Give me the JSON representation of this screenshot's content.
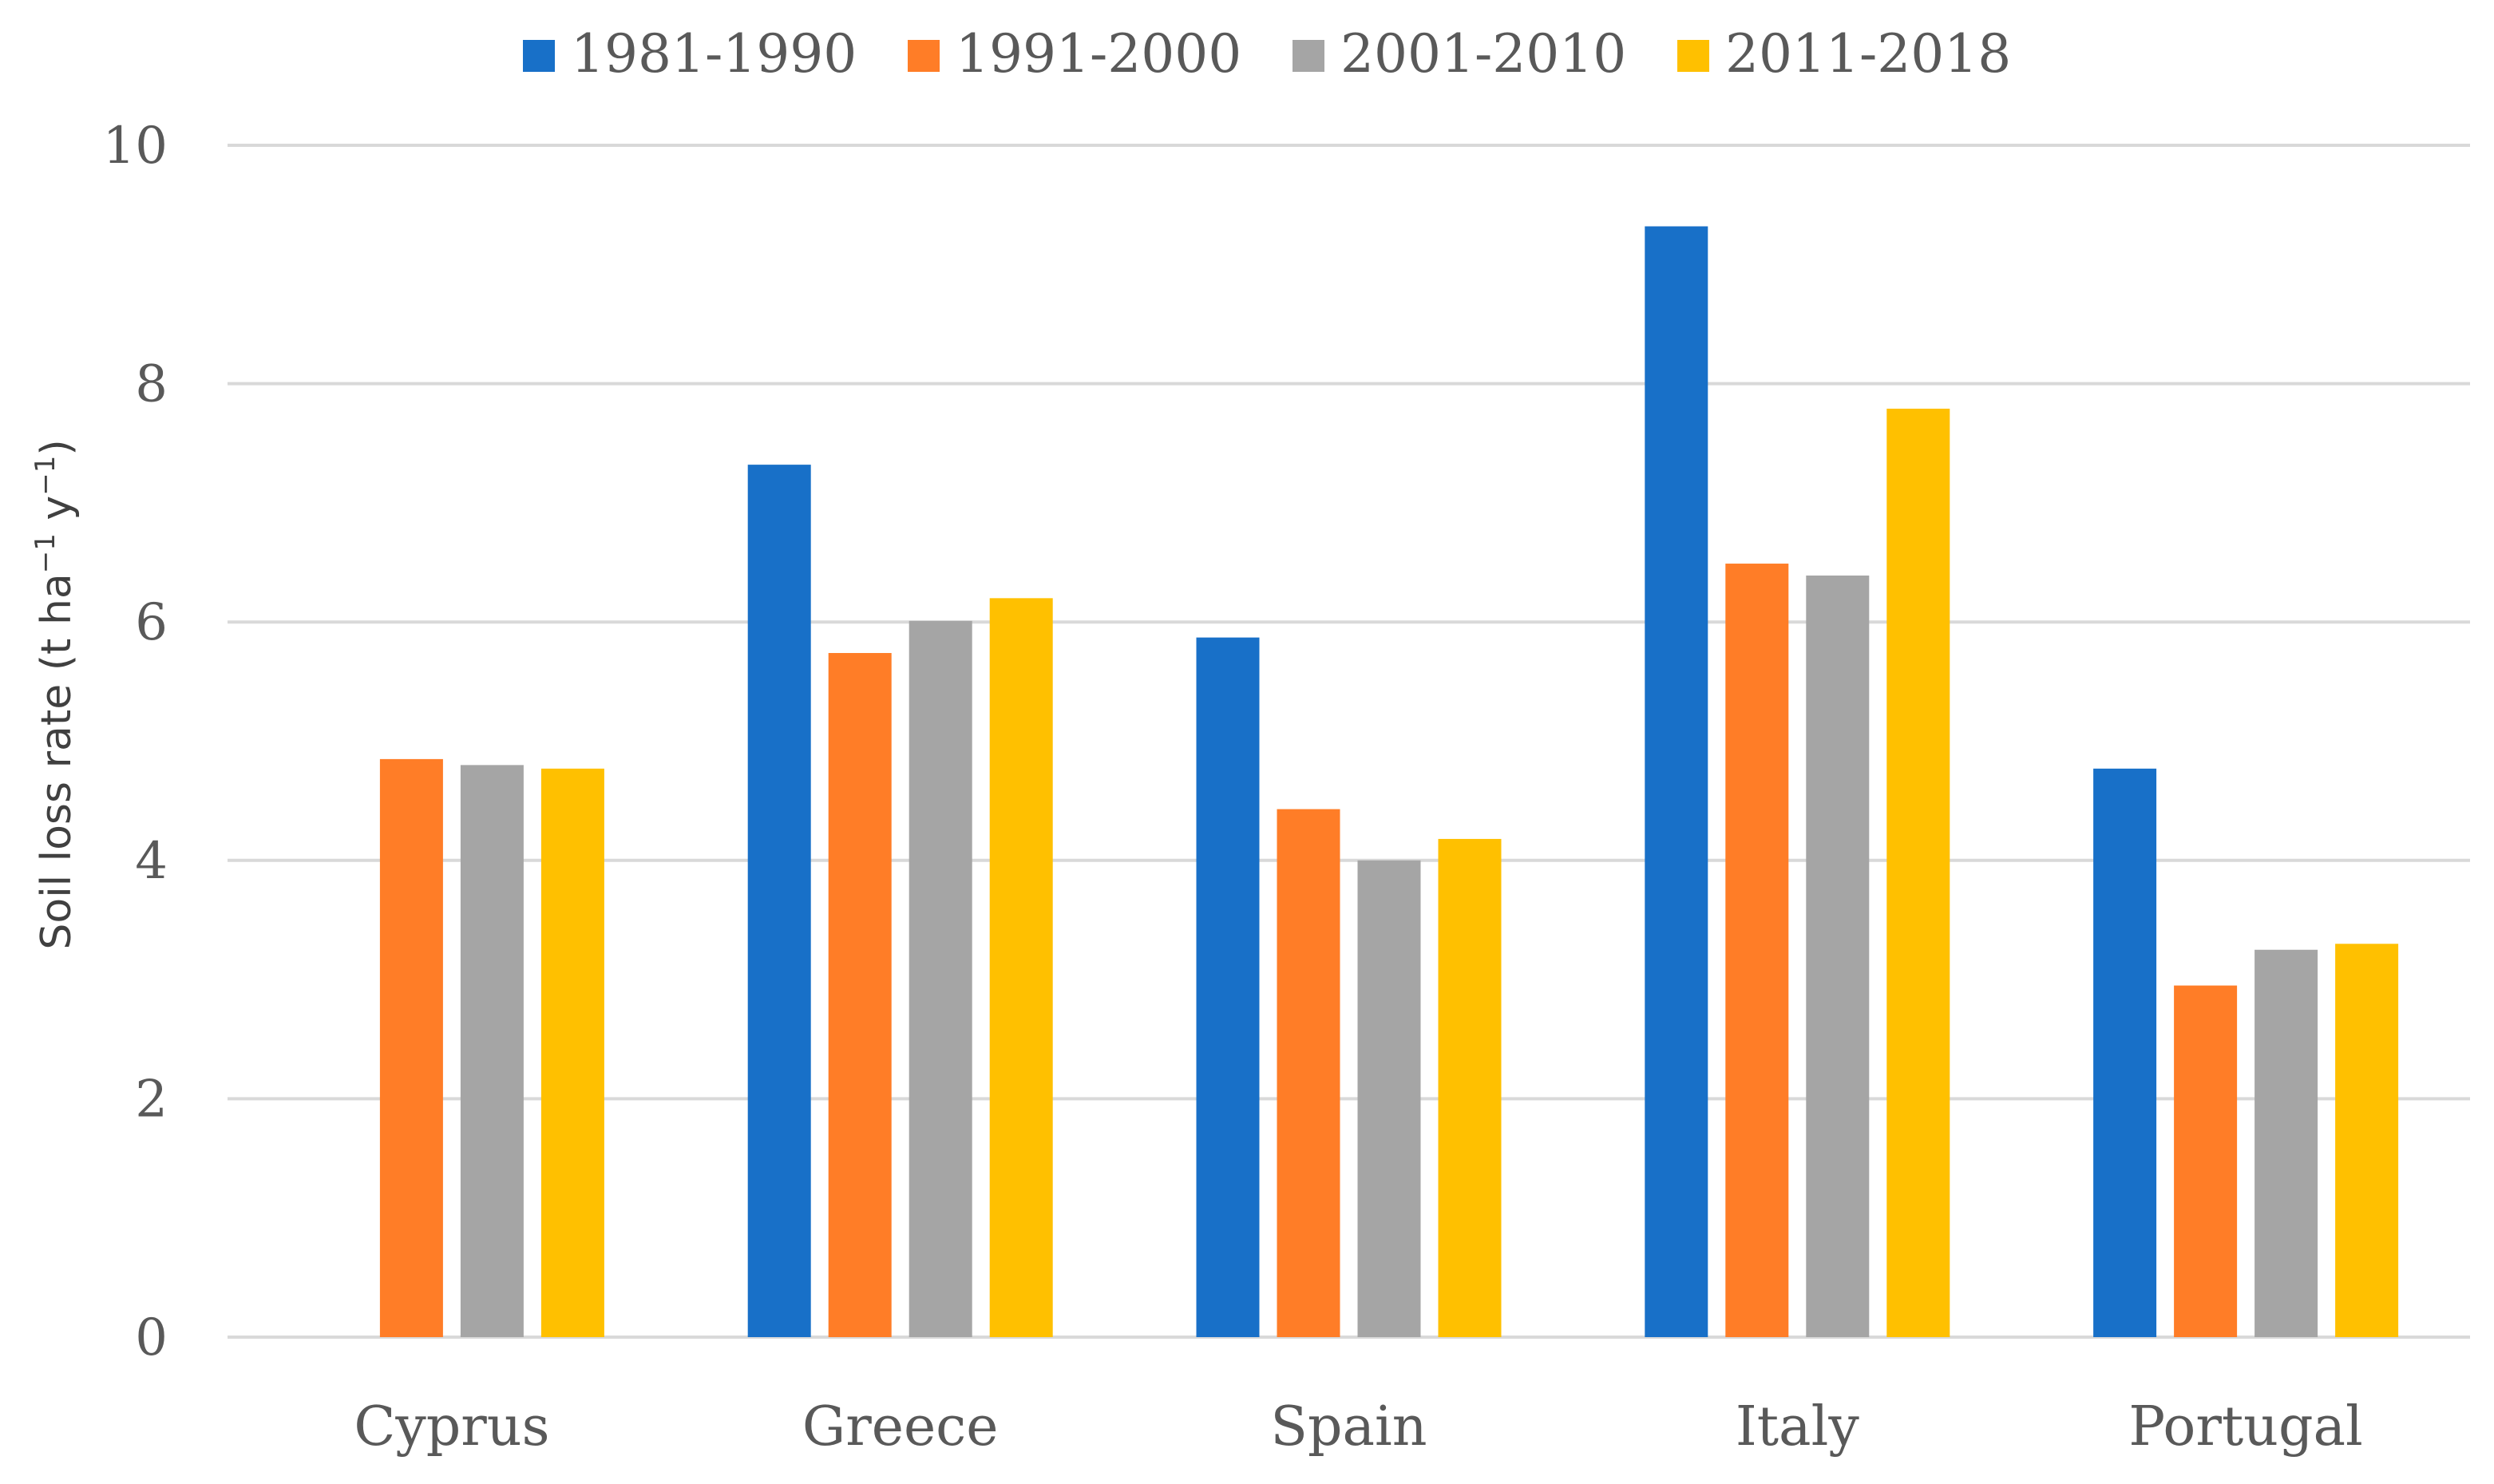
{
  "chart_data": {
    "type": "bar",
    "title": "",
    "xlabel": "",
    "ylabel": "Soil loss rate (t ha",
    "ylabel_sup1": "−1",
    "ylabel_mid": " y",
    "ylabel_sup2": "−1",
    "ylabel_end": ")",
    "ylim": [
      0,
      10
    ],
    "yticks": [
      "0",
      "2",
      "4",
      "6",
      "8",
      "10"
    ],
    "grid": true,
    "legend_position": "top-center",
    "categories": [
      "Cyprus",
      "Greece",
      "Spain",
      "Italy",
      "Portugal"
    ],
    "series": [
      {
        "name": "1981-1990",
        "color": "#1870C8",
        "values": [
          null,
          7.32,
          5.87,
          9.32,
          4.77
        ]
      },
      {
        "name": "1991-2000",
        "color": "#FF7D27",
        "values": [
          4.85,
          5.74,
          4.43,
          6.49,
          2.95
        ]
      },
      {
        "name": "2001-2010",
        "color": "#A5A5A5",
        "values": [
          4.8,
          6.01,
          4.0,
          6.39,
          3.25
        ]
      },
      {
        "name": "2011-2018",
        "color": "#FFC000",
        "values": [
          4.77,
          6.2,
          4.18,
          7.79,
          3.3
        ]
      }
    ]
  }
}
